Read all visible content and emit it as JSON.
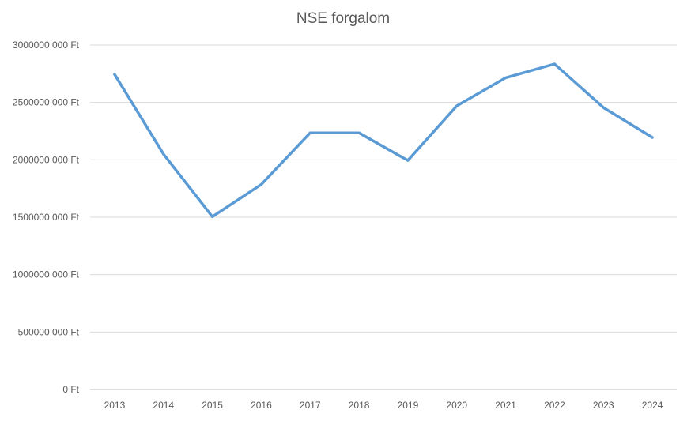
{
  "chart_data": {
    "type": "line",
    "title": "NSE forgalom",
    "xlabel": "",
    "ylabel": "",
    "categories": [
      "2013",
      "2014",
      "2015",
      "2016",
      "2017",
      "2018",
      "2019",
      "2020",
      "2021",
      "2022",
      "2023",
      "2024"
    ],
    "series": [
      {
        "values": [
          2745000000,
          2050000000,
          1505000000,
          1785000000,
          2235000000,
          2235000000,
          1995000000,
          2470000000,
          2715000000,
          2835000000,
          2455000000,
          2195000000
        ],
        "color": "#5b9bd5"
      }
    ],
    "ylim": [
      0,
      3000000000
    ],
    "yticks": [
      {
        "value": 0,
        "label": "0 Ft"
      },
      {
        "value": 500000000,
        "label": "500000 000 Ft"
      },
      {
        "value": 1000000000,
        "label": "1000000 000 Ft"
      },
      {
        "value": 1500000000,
        "label": "1500000 000 Ft"
      },
      {
        "value": 2000000000,
        "label": "2000000 000 Ft"
      },
      {
        "value": 2500000000,
        "label": "2500000 000 Ft"
      },
      {
        "value": 3000000000,
        "label": "3000000 000 Ft"
      }
    ],
    "grid": true,
    "legend": "none"
  }
}
